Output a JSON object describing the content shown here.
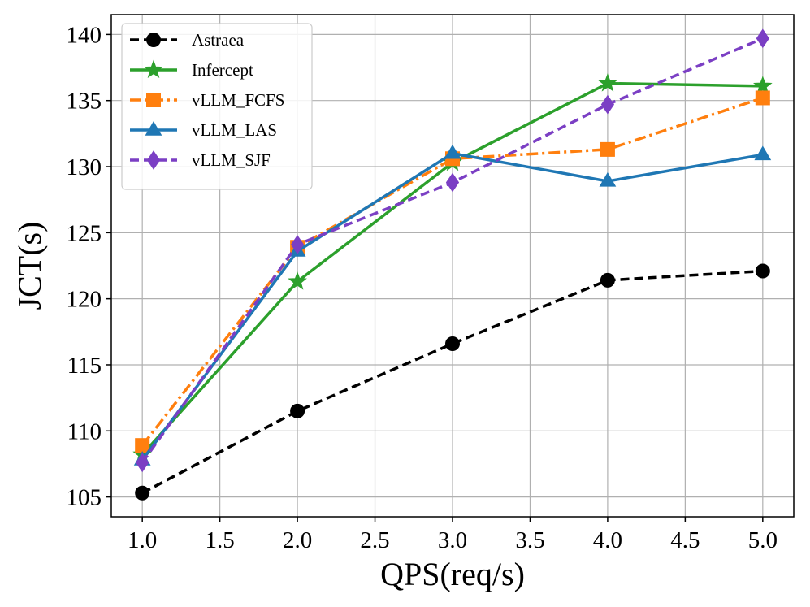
{
  "chart_data": {
    "type": "line",
    "title": "",
    "xlabel": "QPS(req/s)",
    "ylabel": "JCT(s)",
    "xlim": [
      0.8,
      5.2
    ],
    "ylim": [
      103.5,
      141.5
    ],
    "xticks": [
      1.0,
      1.5,
      2.0,
      2.5,
      3.0,
      3.5,
      4.0,
      4.5,
      5.0
    ],
    "xtick_labels": [
      "1.0",
      "1.5",
      "2.0",
      "2.5",
      "3.0",
      "3.5",
      "4.0",
      "4.5",
      "5.0"
    ],
    "yticks": [
      105,
      110,
      115,
      120,
      125,
      130,
      135,
      140
    ],
    "ytick_labels": [
      "105",
      "110",
      "115",
      "120",
      "125",
      "130",
      "135",
      "140"
    ],
    "grid": true,
    "legend_position": "top-left",
    "x": [
      1.0,
      2.0,
      3.0,
      4.0,
      5.0
    ],
    "series": [
      {
        "name": "Astraea",
        "color": "#000000",
        "dash": "dashed",
        "marker": "circle",
        "values": [
          105.3,
          111.5,
          116.6,
          121.4,
          122.1
        ]
      },
      {
        "name": "Infercept",
        "color": "#2ca02c",
        "dash": "solid",
        "marker": "star",
        "values": [
          108.2,
          121.3,
          130.3,
          136.3,
          136.1
        ]
      },
      {
        "name": "vLLM_FCFS",
        "color": "#ff7f0e",
        "dash": "dashdot",
        "marker": "square",
        "values": [
          108.9,
          123.9,
          130.6,
          131.3,
          135.2
        ]
      },
      {
        "name": "vLLM_LAS",
        "color": "#1f77b4",
        "dash": "solid",
        "marker": "triangle",
        "values": [
          107.8,
          123.6,
          131.0,
          128.9,
          130.9
        ]
      },
      {
        "name": "vLLM_SJF",
        "color": "#7b3fc4",
        "dash": "dashed",
        "marker": "diamond",
        "values": [
          107.6,
          124.1,
          128.8,
          134.7,
          139.7
        ]
      }
    ]
  }
}
